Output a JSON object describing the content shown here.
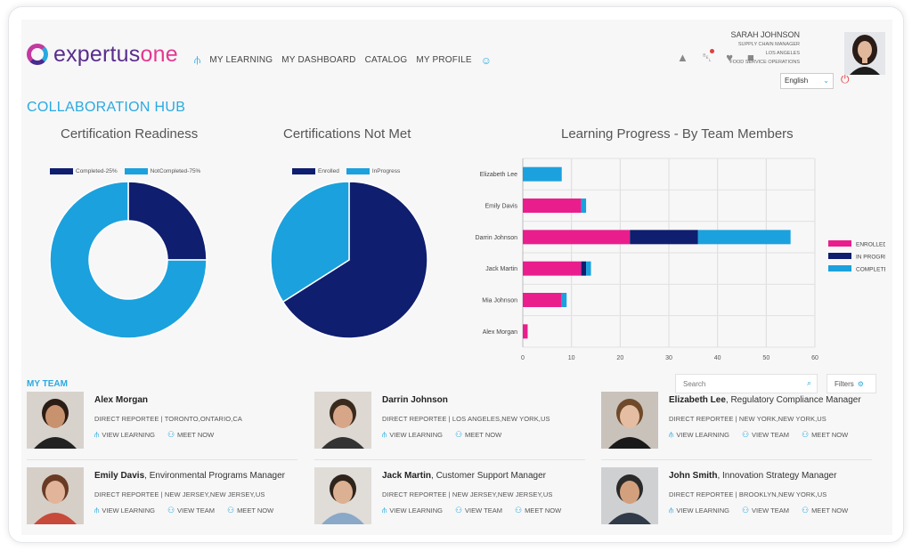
{
  "brand": {
    "logo_prefix": "expertus",
    "logo_suffix": "one"
  },
  "nav": {
    "items": [
      "MY LEARNING",
      "MY DASHBOARD",
      "CATALOG",
      "MY PROFILE"
    ]
  },
  "user": {
    "name": "SARAH JOHNSON",
    "title": "SUPPLY CHAIN MANAGER",
    "location": "LOS ANGELES",
    "department": "FOOD SERVICE OPERATIONS",
    "language": "English"
  },
  "hub_title": "COLLABORATION HUB",
  "chart_data": [
    {
      "type": "pie",
      "title": "Certification Readiness",
      "donut": true,
      "labels": [
        "Completed-25%",
        "NotCompleted-75%"
      ],
      "values": [
        25,
        75
      ],
      "colors": [
        "#0f1e6e",
        "#1ba1dd"
      ]
    },
    {
      "type": "pie",
      "title": "Certifications Not Met",
      "labels": [
        "Enrolled",
        "InProgress"
      ],
      "values": [
        66,
        34
      ],
      "colors": [
        "#0f1e6e",
        "#1ba1dd"
      ]
    },
    {
      "type": "bar",
      "orientation": "horizontal",
      "stacked": true,
      "title": "Learning Progress - By Team Members",
      "categories": [
        "Elizabeth Lee",
        "Emily Davis",
        "Darrin Johnson",
        "Jack Martin",
        "Mia Johnson",
        "Alex Morgan"
      ],
      "series": [
        {
          "name": "ENROLLED",
          "color": "#e91e8c",
          "values": [
            0,
            12,
            22,
            12,
            8,
            1
          ]
        },
        {
          "name": "IN PROGRESS",
          "color": "#0f1e6e",
          "values": [
            0,
            0,
            14,
            1,
            0,
            0
          ]
        },
        {
          "name": "COMPLETED",
          "color": "#1ba1dd",
          "values": [
            8,
            1,
            19,
            1,
            1,
            0
          ]
        }
      ],
      "xlim": [
        0,
        60
      ],
      "xticks": [
        "0",
        "10",
        "20",
        "30",
        "40",
        "50",
        "60"
      ],
      "grid": true,
      "legend": "right"
    }
  ],
  "team": {
    "title": "MY TEAM",
    "search_placeholder": "Search",
    "filters_label": "Filters",
    "members": [
      {
        "name": "Alex Morgan",
        "role": "",
        "meta": "DIRECT REPORTEE | TORONTO,ONTARIO,CA",
        "actions": [
          "VIEW LEARNING",
          "MEET NOW"
        ]
      },
      {
        "name": "Darrin Johnson",
        "role": "",
        "meta": "DIRECT REPORTEE | LOS ANGELES,NEW YORK,US",
        "actions": [
          "VIEW LEARNING",
          "MEET NOW"
        ]
      },
      {
        "name": "Elizabeth Lee",
        "role": ", Regulatory Compliance Manager",
        "meta": "DIRECT REPORTEE | NEW YORK,NEW YORK,US",
        "actions": [
          "VIEW LEARNING",
          "VIEW TEAM",
          "MEET NOW"
        ]
      },
      {
        "name": "Emily Davis",
        "role": ", Environmental Programs Manager",
        "meta": "DIRECT REPORTEE | NEW JERSEY,NEW JERSEY,US",
        "actions": [
          "VIEW LEARNING",
          "VIEW TEAM",
          "MEET NOW"
        ]
      },
      {
        "name": "Jack Martin",
        "role": ", Customer Support Manager",
        "meta": "DIRECT REPORTEE | NEW JERSEY,NEW JERSEY,US",
        "actions": [
          "VIEW LEARNING",
          "VIEW TEAM",
          "MEET NOW"
        ]
      },
      {
        "name": "John Smith",
        "role": ", Innovation Strategy Manager",
        "meta": "DIRECT REPORTEE | BROOKLYN,NEW YORK,US",
        "actions": [
          "VIEW LEARNING",
          "VIEW TEAM",
          "MEET NOW"
        ]
      }
    ]
  }
}
